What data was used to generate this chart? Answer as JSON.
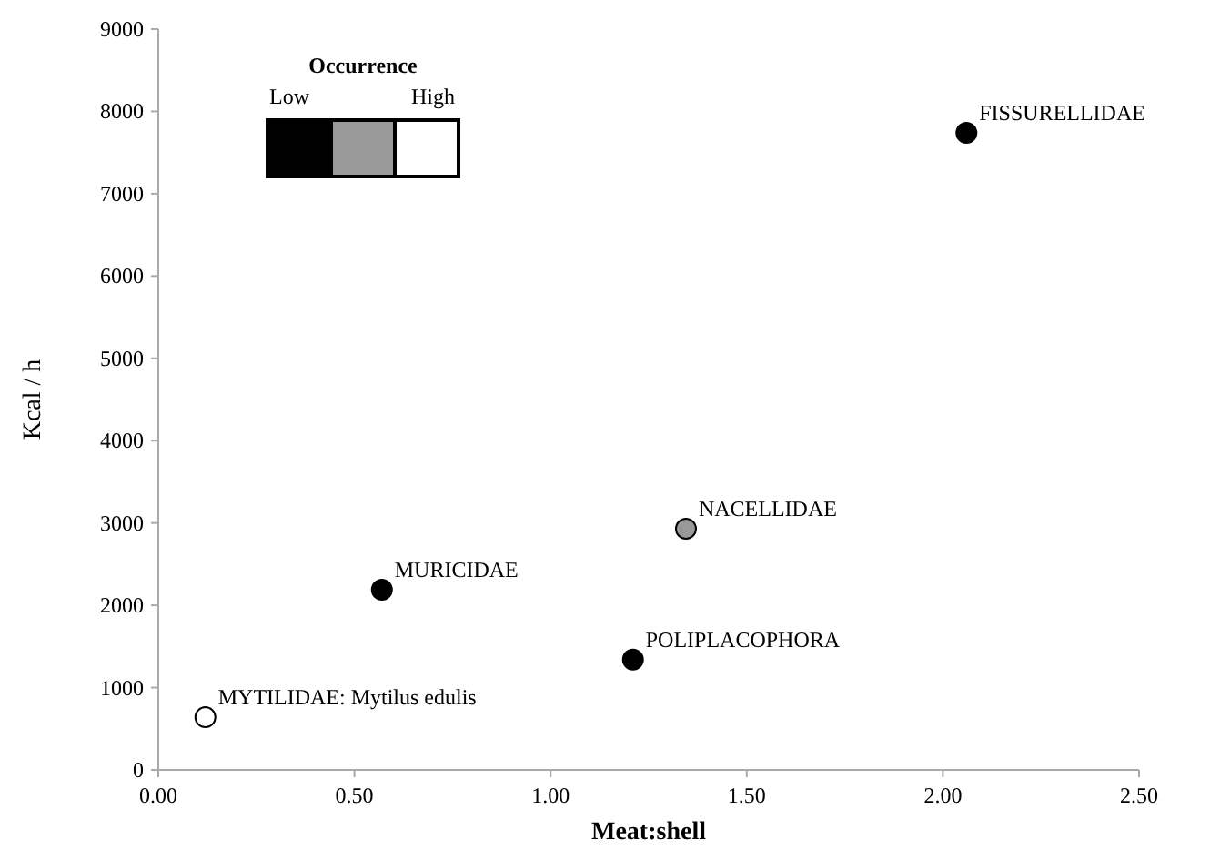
{
  "chart_data": {
    "type": "scatter",
    "xlabel": "Meat:shell",
    "ylabel": "Kcal / h",
    "x": [
      0.12,
      0.57,
      1.21,
      1.345,
      2.06
    ],
    "series": [
      {
        "values": [
          640,
          2190,
          1340,
          2930,
          7740
        ],
        "colors": [
          "#ffffff",
          "#000000",
          "#000000",
          "#999999",
          "#000000"
        ]
      }
    ],
    "xlim": [
      0,
      2.5
    ],
    "xticks": [
      {
        "value": 0,
        "label": "0.00"
      },
      {
        "value": 0.5,
        "label": "0.50"
      },
      {
        "value": 1,
        "label": "1.00"
      },
      {
        "value": 1.5,
        "label": "1.50"
      },
      {
        "value": 2,
        "label": "2.00"
      },
      {
        "value": 2.5,
        "label": "2.50"
      }
    ],
    "ylim": [
      0,
      9000
    ],
    "yticks": [
      0,
      1000,
      2000,
      3000,
      4000,
      5000,
      6000,
      7000,
      8000,
      9000
    ],
    "marker": "circle",
    "grid": false,
    "legend_title": "Occurrence",
    "annotations": [
      {
        "text": "MYTILIDAE: Mytilus edulis",
        "x": 0.12,
        "y": 640
      },
      {
        "text": "MURICIDAE",
        "x": 0.57,
        "y": 2190
      },
      {
        "text": "POLIPLACOPHORA",
        "x": 1.21,
        "y": 1340
      },
      {
        "text": "NACELLIDAE",
        "x": 1.345,
        "y": 2930
      },
      {
        "text": "FISSURELLIDAE",
        "x": 2.06,
        "y": 7740
      },
      "Low",
      "High"
    ]
  }
}
